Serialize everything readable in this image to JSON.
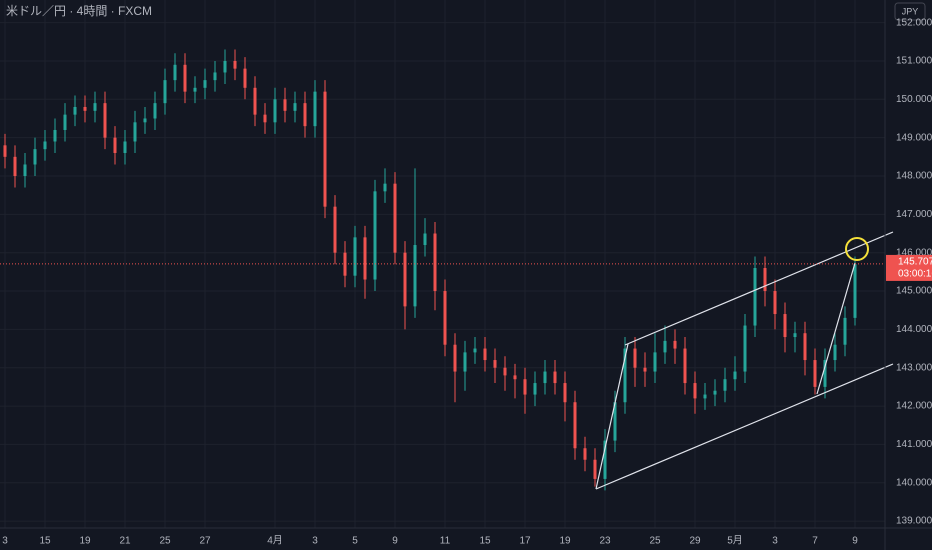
{
  "chart_data": {
    "type": "candlestick",
    "title": "米ドル／円 · 4時間 · FXCM",
    "currency": "JPY",
    "up_color": "#26a69a",
    "down_color": "#ef5350",
    "grid": true,
    "last_price": 145.707,
    "countdown": "03:00:16",
    "ylim": [
      138.82,
      152.59
    ],
    "yticks": [
      {
        "value": 139,
        "label": "139.000"
      },
      {
        "value": 140,
        "label": "140.000"
      },
      {
        "value": 141,
        "label": "141.000"
      },
      {
        "value": 142,
        "label": "142.000"
      },
      {
        "value": 143,
        "label": "143.000"
      },
      {
        "value": 144,
        "label": "144.000"
      },
      {
        "value": 145,
        "label": "145.000"
      },
      {
        "value": 146,
        "label": "146.000"
      },
      {
        "value": 147,
        "label": "147.000"
      },
      {
        "value": 148,
        "label": "148.000"
      },
      {
        "value": 149,
        "label": "149.000"
      },
      {
        "value": 150,
        "label": "150.000"
      },
      {
        "value": 151,
        "label": "151.000"
      },
      {
        "value": 152,
        "label": "152.000"
      }
    ],
    "categories": [
      "3",
      null,
      null,
      null,
      "15",
      null,
      null,
      null,
      "19",
      null,
      null,
      null,
      "21",
      null,
      null,
      null,
      "25",
      null,
      null,
      null,
      "27",
      null,
      null,
      null,
      null,
      null,
      null,
      "4月",
      null,
      null,
      null,
      "3",
      null,
      null,
      null,
      "5",
      null,
      null,
      null,
      "9",
      null,
      null,
      null,
      null,
      "11",
      null,
      null,
      null,
      "15",
      null,
      null,
      null,
      "17",
      null,
      null,
      null,
      "19",
      null,
      null,
      null,
      "23",
      null,
      null,
      null,
      null,
      "25",
      null,
      null,
      null,
      "29",
      null,
      null,
      null,
      "5月",
      null,
      null,
      null,
      "3",
      null,
      null,
      null,
      "7",
      null,
      null,
      null,
      "9"
    ],
    "ohlc": [
      [
        148.8,
        149.1,
        148.2,
        148.5
      ],
      [
        148.5,
        148.8,
        147.7,
        148.0
      ],
      [
        148.0,
        148.6,
        147.7,
        148.3
      ],
      [
        148.3,
        149.0,
        148.0,
        148.7
      ],
      [
        148.7,
        149.2,
        148.4,
        148.9
      ],
      [
        148.9,
        149.5,
        148.6,
        149.2
      ],
      [
        149.2,
        149.9,
        148.9,
        149.6
      ],
      [
        149.6,
        150.1,
        149.3,
        149.8
      ],
      [
        149.8,
        150.1,
        149.4,
        149.7
      ],
      [
        149.7,
        150.2,
        149.4,
        149.9
      ],
      [
        149.9,
        150.2,
        148.7,
        149.0
      ],
      [
        149.0,
        149.3,
        148.3,
        148.6
      ],
      [
        148.6,
        149.2,
        148.3,
        148.9
      ],
      [
        148.9,
        149.7,
        148.6,
        149.4
      ],
      [
        149.4,
        149.8,
        149.1,
        149.5
      ],
      [
        149.5,
        150.2,
        149.2,
        149.9
      ],
      [
        149.9,
        150.8,
        149.6,
        150.5
      ],
      [
        150.5,
        151.2,
        150.2,
        150.9
      ],
      [
        150.9,
        151.2,
        149.9,
        150.2
      ],
      [
        150.2,
        150.6,
        149.9,
        150.3
      ],
      [
        150.3,
        150.8,
        150.0,
        150.5
      ],
      [
        150.5,
        151.0,
        150.2,
        150.7
      ],
      [
        150.7,
        151.3,
        150.4,
        151.0
      ],
      [
        151.0,
        151.3,
        150.5,
        150.8
      ],
      [
        150.8,
        151.1,
        150.0,
        150.3
      ],
      [
        150.3,
        150.6,
        149.3,
        149.6
      ],
      [
        149.6,
        149.9,
        149.1,
        149.4
      ],
      [
        149.4,
        150.3,
        149.1,
        150.0
      ],
      [
        150.0,
        150.3,
        149.4,
        149.7
      ],
      [
        149.7,
        150.2,
        149.4,
        149.9
      ],
      [
        149.9,
        150.2,
        149.0,
        149.3
      ],
      [
        149.3,
        150.5,
        149.0,
        150.2
      ],
      [
        150.2,
        150.5,
        146.9,
        147.2
      ],
      [
        147.2,
        147.5,
        145.7,
        146.0
      ],
      [
        146.0,
        146.3,
        145.1,
        145.4
      ],
      [
        145.4,
        146.7,
        145.1,
        146.4
      ],
      [
        146.4,
        146.7,
        144.8,
        145.3
      ],
      [
        145.3,
        147.9,
        145.0,
        147.6
      ],
      [
        147.6,
        148.2,
        147.3,
        147.8
      ],
      [
        147.8,
        148.1,
        145.7,
        146.0
      ],
      [
        146.0,
        146.3,
        144.0,
        144.6
      ],
      [
        144.6,
        148.2,
        144.3,
        146.2
      ],
      [
        146.2,
        146.9,
        145.9,
        146.5
      ],
      [
        146.5,
        146.8,
        144.5,
        145.0
      ],
      [
        145.0,
        145.3,
        143.3,
        143.6
      ],
      [
        143.6,
        143.9,
        142.1,
        142.9
      ],
      [
        142.9,
        143.7,
        142.4,
        143.4
      ],
      [
        143.4,
        143.8,
        143.1,
        143.5
      ],
      [
        143.5,
        143.8,
        142.9,
        143.2
      ],
      [
        143.2,
        143.5,
        142.6,
        143.0
      ],
      [
        143.0,
        143.3,
        142.4,
        142.8
      ],
      [
        142.8,
        143.1,
        142.2,
        142.7
      ],
      [
        142.7,
        143.0,
        141.8,
        142.3
      ],
      [
        142.3,
        142.9,
        142.0,
        142.6
      ],
      [
        142.6,
        143.2,
        142.3,
        142.9
      ],
      [
        142.9,
        143.2,
        142.3,
        142.6
      ],
      [
        142.6,
        142.9,
        141.6,
        142.1
      ],
      [
        142.1,
        142.4,
        140.6,
        140.9
      ],
      [
        140.9,
        141.2,
        140.3,
        140.6
      ],
      [
        140.6,
        140.9,
        139.9,
        140.1
      ],
      [
        140.1,
        141.4,
        139.8,
        141.1
      ],
      [
        141.1,
        142.4,
        140.8,
        142.1
      ],
      [
        142.1,
        143.8,
        141.8,
        143.5
      ],
      [
        143.5,
        143.8,
        142.5,
        143.0
      ],
      [
        143.0,
        143.4,
        142.5,
        142.9
      ],
      [
        142.9,
        143.9,
        142.6,
        143.4
      ],
      [
        143.4,
        144.1,
        143.1,
        143.7
      ],
      [
        143.7,
        144.0,
        143.1,
        143.5
      ],
      [
        143.5,
        143.8,
        142.3,
        142.6
      ],
      [
        142.6,
        142.9,
        141.8,
        142.2
      ],
      [
        142.2,
        142.6,
        141.9,
        142.3
      ],
      [
        142.3,
        142.7,
        142.0,
        142.4
      ],
      [
        142.4,
        143.0,
        142.1,
        142.7
      ],
      [
        142.7,
        143.3,
        142.4,
        142.9
      ],
      [
        142.9,
        144.4,
        142.6,
        144.1
      ],
      [
        144.1,
        145.9,
        143.8,
        145.6
      ],
      [
        145.6,
        145.9,
        144.6,
        145.0
      ],
      [
        145.0,
        145.3,
        144.0,
        144.4
      ],
      [
        144.4,
        144.7,
        143.4,
        143.8
      ],
      [
        143.8,
        144.2,
        143.4,
        143.9
      ],
      [
        143.9,
        144.2,
        142.8,
        143.2
      ],
      [
        143.2,
        143.5,
        142.3,
        142.5
      ],
      [
        142.5,
        143.5,
        142.2,
        143.2
      ],
      [
        143.2,
        143.9,
        142.9,
        143.6
      ],
      [
        143.6,
        144.6,
        143.3,
        144.3
      ],
      [
        144.3,
        145.9,
        144.1,
        145.7
      ]
    ]
  }
}
